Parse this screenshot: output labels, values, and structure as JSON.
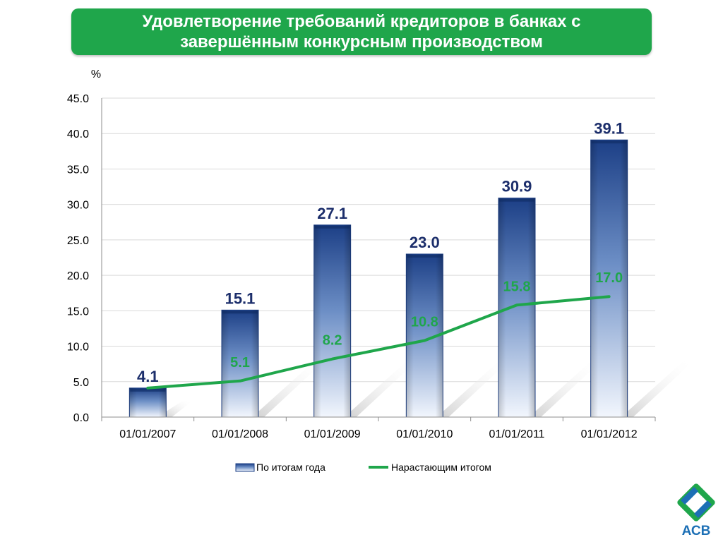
{
  "title": "Удовлетворение требований кредиторов в банках с завершённым конкурсным производством",
  "colors": {
    "banner": "#1fa64b",
    "bar_dark": "#1c3f86",
    "bar_light": "#eef4fd",
    "line": "#1fa64b",
    "bar_label": "#1c2e6b",
    "line_label": "#1fa64b"
  },
  "chart_data": {
    "type": "bar",
    "categories": [
      "01/01/2007",
      "01/01/2008",
      "01/01/2009",
      "01/01/2010",
      "01/01/2011",
      "01/01/2012"
    ],
    "series": [
      {
        "name": "По итогам года",
        "type": "bar",
        "values": [
          4.1,
          15.1,
          27.1,
          23.0,
          30.9,
          39.1
        ]
      },
      {
        "name": "Нарастающим итогом",
        "type": "line",
        "values": [
          4.1,
          5.1,
          8.2,
          10.8,
          15.8,
          17.0
        ]
      }
    ],
    "ylabel": "%",
    "ylim": [
      0,
      45
    ],
    "yticks": [
      "0.0",
      "5.0",
      "10.0",
      "15.0",
      "20.0",
      "25.0",
      "30.0",
      "35.0",
      "40.0",
      "45.0"
    ],
    "bar_labels": [
      "4.1",
      "15.1",
      "27.1",
      "23.0",
      "30.9",
      "39.1"
    ],
    "line_labels": [
      "",
      "5.1",
      "8.2",
      "10.8",
      "15.8",
      "17.0"
    ],
    "grid": true,
    "legend": "bottom"
  },
  "logo": {
    "icon": "acb-logo-icon",
    "text": "АСВ"
  }
}
